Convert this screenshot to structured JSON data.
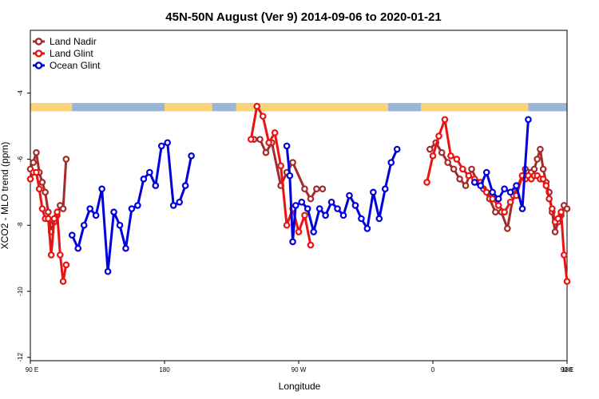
{
  "chart_data": {
    "type": "line",
    "title": "45N-50N August (Ver 9)   2014-09-06 to 2020-01-21",
    "xlabel": "Longitude",
    "ylabel": "XCO2 - MLO trend (ppm)",
    "xlim": [
      90,
      450
    ],
    "ylim": [
      -12.1,
      -2.1
    ],
    "xticks": [
      {
        "value": 90,
        "label": "90 E"
      },
      {
        "value": 180,
        "label": "180"
      },
      {
        "value": 270,
        "label": "90 W"
      },
      {
        "value": 360,
        "label": "0"
      },
      {
        "value": 450,
        "label": "90 E"
      }
    ],
    "xticks_extra": [
      {
        "value": 450,
        "label": "180"
      }
    ],
    "yticks": [
      {
        "value": -4,
        "label": "-4"
      },
      {
        "value": -6,
        "label": "-6"
      },
      {
        "value": -8,
        "label": "-8"
      },
      {
        "value": -10,
        "label": "-10"
      },
      {
        "value": -12,
        "label": "-12"
      }
    ],
    "grid": false,
    "legend_position": "top-left",
    "land_mask_band": {
      "y_top": -4.3,
      "y_bottom": -4.55,
      "land_color": "#fbd47a",
      "ocean_color": "#9bb5d9"
    },
    "series": [
      {
        "name": "Land Nadir",
        "color": "#a52a2a",
        "points": [
          [
            90,
            -6.3
          ],
          [
            92,
            -6.1
          ],
          [
            94,
            -5.8
          ],
          [
            96,
            -6.4
          ],
          [
            98,
            -6.7
          ],
          [
            100,
            -7.0
          ],
          [
            102,
            -7.6
          ],
          [
            104,
            -8.2
          ],
          [
            106,
            -7.9
          ],
          [
            108,
            -7.7
          ],
          [
            110,
            -7.4
          ],
          [
            112,
            -7.5
          ],
          [
            114,
            -6.0
          ],
          [
            240,
            -5.4
          ],
          [
            244,
            -5.4
          ],
          [
            248,
            -5.8
          ],
          [
            252,
            -5.5
          ],
          [
            258,
            -6.8
          ],
          [
            262,
            -6.4
          ],
          [
            266,
            -6.1
          ],
          [
            274,
            -6.9
          ],
          [
            278,
            -7.2
          ],
          [
            282,
            -6.9
          ],
          [
            286,
            -6.9
          ],
          [
            358,
            -5.7
          ],
          [
            362,
            -5.5
          ],
          [
            366,
            -5.8
          ],
          [
            370,
            -6.1
          ],
          [
            374,
            -6.3
          ],
          [
            378,
            -6.6
          ],
          [
            382,
            -6.8
          ],
          [
            386,
            -6.3
          ],
          [
            390,
            -6.7
          ],
          [
            394,
            -6.9
          ],
          [
            398,
            -7.2
          ],
          [
            402,
            -7.6
          ],
          [
            406,
            -7.6
          ],
          [
            410,
            -8.1
          ],
          [
            414,
            -7.1
          ],
          [
            420,
            -6.5
          ],
          [
            422,
            -6.3
          ],
          [
            424,
            -6.4
          ],
          [
            426,
            -6.4
          ],
          [
            428,
            -6.3
          ],
          [
            430,
            -6.0
          ],
          [
            432,
            -5.7
          ],
          [
            434,
            -6.3
          ],
          [
            436,
            -6.7
          ],
          [
            438,
            -7.0
          ],
          [
            440,
            -7.6
          ],
          [
            442,
            -8.2
          ],
          [
            444,
            -7.9
          ],
          [
            446,
            -7.7
          ],
          [
            448,
            -7.4
          ],
          [
            450,
            -7.5
          ]
        ]
      },
      {
        "name": "Land Glint",
        "color": "#ee1111",
        "points": [
          [
            90,
            -6.6
          ],
          [
            92,
            -6.4
          ],
          [
            94,
            -6.4
          ],
          [
            96,
            -6.9
          ],
          [
            98,
            -7.5
          ],
          [
            100,
            -7.8
          ],
          [
            102,
            -7.8
          ],
          [
            104,
            -8.9
          ],
          [
            106,
            -7.8
          ],
          [
            108,
            -7.6
          ],
          [
            110,
            -8.9
          ],
          [
            112,
            -9.7
          ],
          [
            114,
            -9.2
          ],
          [
            238,
            -5.4
          ],
          [
            242,
            -4.4
          ],
          [
            246,
            -4.7
          ],
          [
            250,
            -5.5
          ],
          [
            254,
            -5.2
          ],
          [
            258,
            -6.2
          ],
          [
            262,
            -8.0
          ],
          [
            266,
            -7.5
          ],
          [
            270,
            -8.2
          ],
          [
            274,
            -7.7
          ],
          [
            278,
            -8.6
          ],
          [
            356,
            -6.7
          ],
          [
            360,
            -5.9
          ],
          [
            364,
            -5.3
          ],
          [
            368,
            -4.8
          ],
          [
            372,
            -5.9
          ],
          [
            376,
            -6.0
          ],
          [
            380,
            -6.3
          ],
          [
            384,
            -6.5
          ],
          [
            388,
            -6.6
          ],
          [
            392,
            -6.7
          ],
          [
            396,
            -7.0
          ],
          [
            400,
            -7.2
          ],
          [
            404,
            -7.4
          ],
          [
            408,
            -7.6
          ],
          [
            412,
            -7.3
          ],
          [
            416,
            -7.1
          ],
          [
            420,
            -6.5
          ],
          [
            422,
            -6.6
          ],
          [
            424,
            -6.5
          ],
          [
            426,
            -6.6
          ],
          [
            428,
            -6.5
          ],
          [
            430,
            -6.5
          ],
          [
            432,
            -6.6
          ],
          [
            434,
            -6.6
          ],
          [
            436,
            -6.8
          ],
          [
            438,
            -7.2
          ],
          [
            440,
            -7.5
          ],
          [
            442,
            -7.9
          ],
          [
            444,
            -7.8
          ],
          [
            446,
            -7.6
          ],
          [
            448,
            -8.9
          ],
          [
            450,
            -9.7
          ]
        ]
      },
      {
        "name": "Ocean Glint",
        "color": "#0000dd",
        "points": [
          [
            118,
            -8.3
          ],
          [
            122,
            -8.7
          ],
          [
            126,
            -8.0
          ],
          [
            130,
            -7.5
          ],
          [
            134,
            -7.7
          ],
          [
            138,
            -6.9
          ],
          [
            142,
            -9.4
          ],
          [
            146,
            -7.6
          ],
          [
            150,
            -8.0
          ],
          [
            154,
            -8.7
          ],
          [
            158,
            -7.5
          ],
          [
            162,
            -7.4
          ],
          [
            166,
            -6.6
          ],
          [
            170,
            -6.4
          ],
          [
            174,
            -6.8
          ],
          [
            178,
            -5.6
          ],
          [
            182,
            -5.5
          ],
          [
            186,
            -7.4
          ],
          [
            190,
            -7.3
          ],
          [
            194,
            -6.8
          ],
          [
            198,
            -5.9
          ],
          [
            262,
            -5.6
          ],
          [
            264,
            -6.5
          ],
          [
            266,
            -8.5
          ],
          [
            268,
            -7.4
          ],
          [
            272,
            -7.3
          ],
          [
            276,
            -7.5
          ],
          [
            280,
            -8.2
          ],
          [
            284,
            -7.5
          ],
          [
            288,
            -7.7
          ],
          [
            292,
            -7.3
          ],
          [
            296,
            -7.5
          ],
          [
            300,
            -7.7
          ],
          [
            304,
            -7.1
          ],
          [
            308,
            -7.4
          ],
          [
            312,
            -7.8
          ],
          [
            316,
            -8.1
          ],
          [
            320,
            -7.0
          ],
          [
            324,
            -7.8
          ],
          [
            328,
            -6.9
          ],
          [
            332,
            -6.1
          ],
          [
            336,
            -5.7
          ],
          [
            388,
            -6.7
          ],
          [
            392,
            -6.8
          ],
          [
            396,
            -6.4
          ],
          [
            400,
            -7.0
          ],
          [
            404,
            -7.2
          ],
          [
            408,
            -6.9
          ],
          [
            412,
            -7.0
          ],
          [
            416,
            -6.8
          ],
          [
            420,
            -7.5
          ],
          [
            424,
            -4.8
          ]
        ]
      }
    ]
  }
}
